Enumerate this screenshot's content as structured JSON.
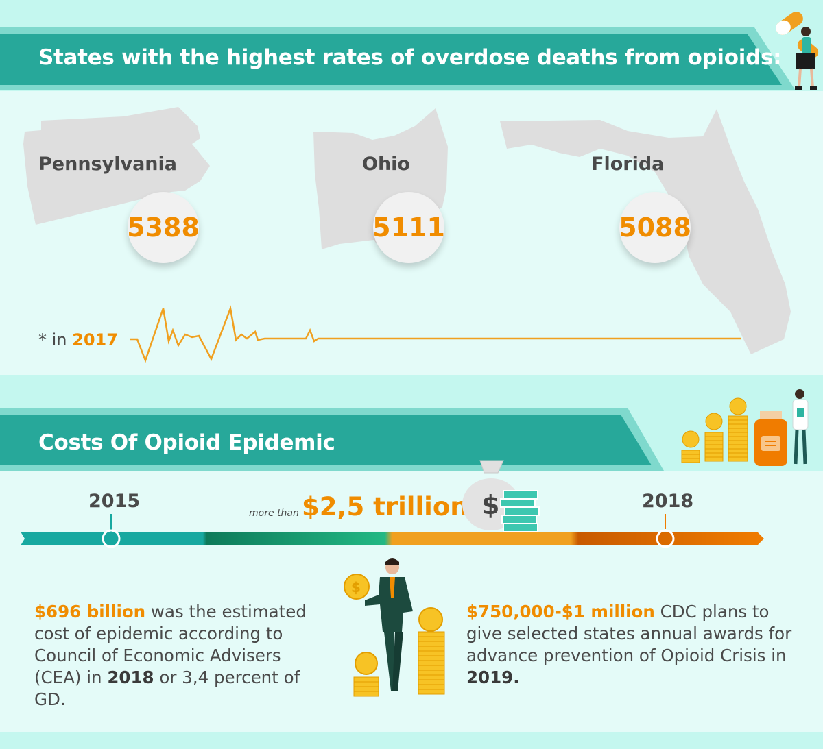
{
  "section1": {
    "title": "States with the highest rates of overdose deaths from opioids:",
    "states": [
      {
        "name": "Pennsylvania",
        "value": "5388"
      },
      {
        "name": "Ohio",
        "value": "5111"
      },
      {
        "name": "Florida",
        "value": "5088"
      }
    ],
    "note_prefix": "* in",
    "note_year": "2017"
  },
  "section2": {
    "title": "Costs Of Opioid Epidemic",
    "year_start": "2015",
    "year_end": "2018",
    "more_than": "more than",
    "total": "$2,5 trillion",
    "left_para": {
      "highlight": "$696 billion",
      "text1": " was the estimated cost of epidemic according to Council of Economic Advisers (CEA) in ",
      "year": "2018",
      "text2": " or 3,4 percent of GD."
    },
    "right_para": {
      "highlight": "$750,000-$1 million",
      "text1": " CDC plans to give selected states annual awards for advance prevention of Opioid Crisis in ",
      "year": "2019."
    }
  },
  "colors": {
    "teal": "#27a89a",
    "orange": "#f08c00",
    "background": "#e4fbf8",
    "band": "#c4f7ef",
    "text": "#4a4a4a"
  },
  "icons": [
    "pill-person-icon",
    "heartbeat-line-icon",
    "coin-stacks-icon",
    "pill-bottle-icon",
    "doctor-icon",
    "money-bag-icon",
    "businessman-icon"
  ]
}
